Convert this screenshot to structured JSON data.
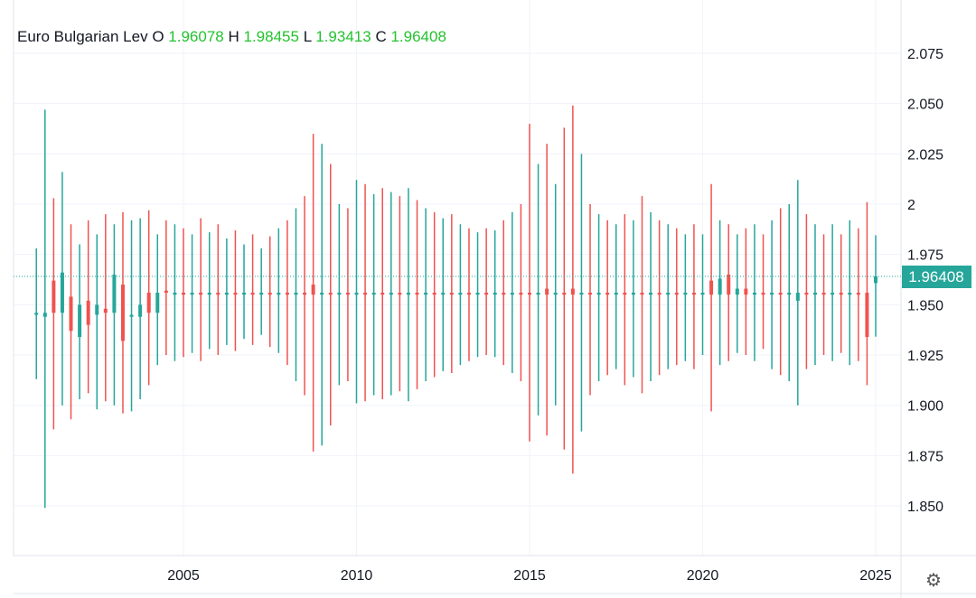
{
  "legend": {
    "symbol": "Euro Bulgarian Lev",
    "o_label": "O",
    "o": "1.96078",
    "h_label": "H",
    "h": "1.98455",
    "l_label": "L",
    "l": "1.93413",
    "c_label": "C",
    "c": "1.96408"
  },
  "last_price_label": "1.96408",
  "colors": {
    "up": "#26a69a",
    "down": "#ef5350",
    "ohlc_value": "#22c32e",
    "grid": "#f0f3fa"
  },
  "settings_icon": "gear-icon",
  "chart_data": {
    "type": "candlestick",
    "title": "Euro Bulgarian Lev",
    "ylim": [
      1.825,
      2.09
    ],
    "xlim": [
      2000.7,
      2025.8
    ],
    "grid": true,
    "y_ticks": [
      "2.075",
      "2.050",
      "2.025",
      "2",
      "1.975",
      "1.950",
      "1.925",
      "1.900",
      "1.875",
      "1.850"
    ],
    "y_tick_values": [
      2.075,
      2.05,
      2.025,
      2,
      1.975,
      1.95,
      1.925,
      1.9,
      1.875,
      1.85
    ],
    "x_ticks": [
      "2005",
      "2010",
      "2015",
      "2020",
      "2025"
    ],
    "last_price": 1.96408,
    "candles": [
      [
        "2000-10",
        1.945,
        1.978,
        1.913,
        1.946
      ],
      [
        "2001-01",
        1.944,
        2.047,
        1.849,
        1.946
      ],
      [
        "2001-04",
        1.962,
        2.003,
        1.888,
        1.946
      ],
      [
        "2001-07",
        1.946,
        2.016,
        1.9,
        1.966
      ],
      [
        "2001-10",
        1.954,
        1.99,
        1.893,
        1.937
      ],
      [
        "2002-01",
        1.934,
        1.98,
        1.903,
        1.95
      ],
      [
        "2002-04",
        1.952,
        1.992,
        1.906,
        1.94
      ],
      [
        "2002-07",
        1.945,
        1.985,
        1.898,
        1.95
      ],
      [
        "2002-10",
        1.948,
        1.995,
        1.902,
        1.946
      ],
      [
        "2003-01",
        1.946,
        1.99,
        1.9,
        1.965
      ],
      [
        "2003-04",
        1.96,
        1.996,
        1.896,
        1.932
      ],
      [
        "2003-07",
        1.944,
        1.992,
        1.897,
        1.945
      ],
      [
        "2003-10",
        1.944,
        1.993,
        1.903,
        1.95
      ],
      [
        "2004-01",
        1.956,
        1.997,
        1.91,
        1.946
      ],
      [
        "2004-04",
        1.946,
        1.985,
        1.92,
        1.956
      ],
      [
        "2004-07",
        1.957,
        1.992,
        1.925,
        1.956
      ],
      [
        "2004-10",
        1.955,
        1.99,
        1.922,
        1.956
      ],
      [
        "2005-01",
        1.956,
        1.988,
        1.924,
        1.955
      ],
      [
        "2005-04",
        1.955,
        1.985,
        1.926,
        1.956
      ],
      [
        "2005-07",
        1.956,
        1.993,
        1.922,
        1.955
      ],
      [
        "2005-10",
        1.955,
        1.986,
        1.928,
        1.956
      ],
      [
        "2006-01",
        1.956,
        1.99,
        1.925,
        1.955
      ],
      [
        "2006-04",
        1.955,
        1.983,
        1.93,
        1.956
      ],
      [
        "2006-07",
        1.956,
        1.987,
        1.927,
        1.955
      ],
      [
        "2006-10",
        1.955,
        1.98,
        1.933,
        1.956
      ],
      [
        "2007-01",
        1.956,
        1.985,
        1.93,
        1.955
      ],
      [
        "2007-04",
        1.955,
        1.978,
        1.935,
        1.956
      ],
      [
        "2007-07",
        1.956,
        1.984,
        1.929,
        1.955
      ],
      [
        "2007-10",
        1.955,
        1.988,
        1.926,
        1.956
      ],
      [
        "2008-01",
        1.956,
        1.992,
        1.92,
        1.955
      ],
      [
        "2008-04",
        1.955,
        1.998,
        1.912,
        1.956
      ],
      [
        "2008-07",
        1.956,
        2.004,
        1.905,
        1.955
      ],
      [
        "2008-10",
        1.96,
        2.035,
        1.877,
        1.955
      ],
      [
        "2009-01",
        1.955,
        2.03,
        1.88,
        1.956
      ],
      [
        "2009-04",
        1.956,
        2.02,
        1.89,
        1.955
      ],
      [
        "2009-07",
        1.955,
        2.0,
        1.91,
        1.956
      ],
      [
        "2009-10",
        1.956,
        1.998,
        1.912,
        1.955
      ],
      [
        "2010-01",
        1.955,
        2.012,
        1.901,
        1.956
      ],
      [
        "2010-04",
        1.956,
        2.01,
        1.902,
        1.955
      ],
      [
        "2010-07",
        1.955,
        2.005,
        1.905,
        1.956
      ],
      [
        "2010-10",
        1.956,
        2.008,
        1.903,
        1.955
      ],
      [
        "2011-01",
        1.955,
        2.006,
        1.905,
        1.956
      ],
      [
        "2011-04",
        1.956,
        2.004,
        1.907,
        1.955
      ],
      [
        "2011-07",
        1.955,
        2.008,
        1.902,
        1.956
      ],
      [
        "2011-10",
        1.956,
        2.002,
        1.908,
        1.955
      ],
      [
        "2012-01",
        1.955,
        1.998,
        1.912,
        1.956
      ],
      [
        "2012-04",
        1.956,
        1.996,
        1.914,
        1.955
      ],
      [
        "2012-07",
        1.955,
        1.993,
        1.917,
        1.956
      ],
      [
        "2012-10",
        1.956,
        1.995,
        1.916,
        1.955
      ],
      [
        "2013-01",
        1.955,
        1.99,
        1.92,
        1.956
      ],
      [
        "2013-04",
        1.956,
        1.988,
        1.922,
        1.955
      ],
      [
        "2013-07",
        1.955,
        1.986,
        1.924,
        1.956
      ],
      [
        "2013-10",
        1.956,
        1.988,
        1.925,
        1.955
      ],
      [
        "2014-01",
        1.955,
        1.987,
        1.924,
        1.956
      ],
      [
        "2014-04",
        1.956,
        1.992,
        1.92,
        1.955
      ],
      [
        "2014-07",
        1.955,
        1.996,
        1.916,
        1.956
      ],
      [
        "2014-10",
        1.956,
        2.0,
        1.912,
        1.955
      ],
      [
        "2015-01",
        1.956,
        2.04,
        1.882,
        1.955
      ],
      [
        "2015-04",
        1.955,
        2.02,
        1.895,
        1.956
      ],
      [
        "2015-07",
        1.958,
        2.03,
        1.885,
        1.955
      ],
      [
        "2015-10",
        1.955,
        2.01,
        1.9,
        1.956
      ],
      [
        "2016-01",
        1.956,
        2.038,
        1.878,
        1.955
      ],
      [
        "2016-04",
        1.958,
        2.049,
        1.866,
        1.955
      ],
      [
        "2016-07",
        1.955,
        2.025,
        1.887,
        1.956
      ],
      [
        "2016-10",
        1.956,
        2.0,
        1.905,
        1.955
      ],
      [
        "2017-01",
        1.955,
        1.995,
        1.912,
        1.956
      ],
      [
        "2017-04",
        1.956,
        1.992,
        1.915,
        1.955
      ],
      [
        "2017-07",
        1.955,
        1.99,
        1.918,
        1.956
      ],
      [
        "2017-10",
        1.956,
        1.995,
        1.91,
        1.955
      ],
      [
        "2018-01",
        1.955,
        1.992,
        1.914,
        1.956
      ],
      [
        "2018-04",
        1.956,
        2.004,
        1.906,
        1.955
      ],
      [
        "2018-07",
        1.955,
        1.996,
        1.912,
        1.956
      ],
      [
        "2018-10",
        1.956,
        1.992,
        1.915,
        1.955
      ],
      [
        "2019-01",
        1.955,
        1.99,
        1.918,
        1.956
      ],
      [
        "2019-04",
        1.956,
        1.988,
        1.92,
        1.955
      ],
      [
        "2019-07",
        1.955,
        1.985,
        1.922,
        1.956
      ],
      [
        "2019-10",
        1.956,
        1.99,
        1.918,
        1.955
      ],
      [
        "2020-01",
        1.955,
        1.985,
        1.925,
        1.956
      ],
      [
        "2020-04",
        1.962,
        2.01,
        1.897,
        1.955
      ],
      [
        "2020-07",
        1.955,
        1.992,
        1.92,
        1.963
      ],
      [
        "2020-10",
        1.965,
        1.99,
        1.922,
        1.955
      ],
      [
        "2021-01",
        1.955,
        1.985,
        1.926,
        1.958
      ],
      [
        "2021-04",
        1.958,
        1.988,
        1.925,
        1.955
      ],
      [
        "2021-07",
        1.955,
        1.99,
        1.922,
        1.956
      ],
      [
        "2021-10",
        1.956,
        1.985,
        1.928,
        1.955
      ],
      [
        "2022-01",
        1.955,
        1.992,
        1.918,
        1.956
      ],
      [
        "2022-04",
        1.956,
        1.998,
        1.915,
        1.955
      ],
      [
        "2022-07",
        1.955,
        2.0,
        1.912,
        1.956
      ],
      [
        "2022-10",
        1.952,
        2.012,
        1.9,
        1.956
      ],
      [
        "2023-01",
        1.956,
        1.995,
        1.918,
        1.955
      ],
      [
        "2023-04",
        1.955,
        1.99,
        1.92,
        1.956
      ],
      [
        "2023-07",
        1.956,
        1.985,
        1.925,
        1.955
      ],
      [
        "2023-10",
        1.955,
        1.99,
        1.922,
        1.956
      ],
      [
        "2024-01",
        1.956,
        1.985,
        1.926,
        1.955
      ],
      [
        "2024-04",
        1.955,
        1.992,
        1.92,
        1.956
      ],
      [
        "2024-07",
        1.956,
        1.988,
        1.922,
        1.955
      ],
      [
        "2024-10",
        1.956,
        2.001,
        1.91,
        1.934
      ],
      [
        "2025-01",
        1.96078,
        1.98455,
        1.93413,
        1.96408
      ]
    ]
  }
}
